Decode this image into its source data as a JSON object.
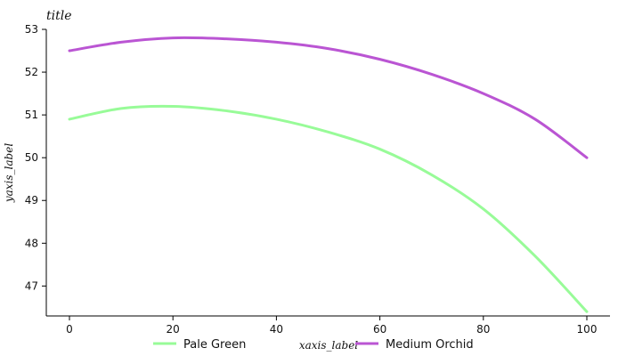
{
  "chart_data": {
    "type": "line",
    "title": "title",
    "xlabel": "xaxis_label",
    "ylabel": "yaxis_label",
    "xlim": [
      0,
      100
    ],
    "ylim": [
      46.3,
      53
    ],
    "x_ticks": [
      "0",
      "20",
      "40",
      "60",
      "80",
      "100"
    ],
    "y_ticks": [
      "47",
      "48",
      "49",
      "50",
      "51",
      "52",
      "53"
    ],
    "grid": false,
    "legend_position": "bottom",
    "series": [
      {
        "name": "Pale Green",
        "color": "#98fb98",
        "x": [
          0,
          10,
          20,
          30,
          40,
          50,
          60,
          70,
          80,
          90,
          100
        ],
        "y": [
          50.9,
          51.15,
          51.2,
          51.1,
          50.9,
          50.6,
          50.2,
          49.6,
          48.8,
          47.7,
          46.4
        ]
      },
      {
        "name": "Medium Orchid",
        "color": "#ba55d3",
        "x": [
          0,
          10,
          20,
          30,
          40,
          50,
          60,
          70,
          80,
          90,
          100
        ],
        "y": [
          52.5,
          52.7,
          52.8,
          52.78,
          52.7,
          52.55,
          52.3,
          51.95,
          51.5,
          50.9,
          50.0
        ]
      }
    ]
  }
}
